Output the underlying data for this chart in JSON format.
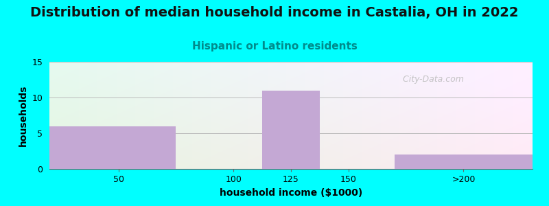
{
  "title": "Distribution of median household income in Castalia, OH in 2022",
  "subtitle": "Hispanic or Latino residents",
  "xlabel": "household income ($1000)",
  "ylabel": "households",
  "categories": [
    "50",
    "100",
    "125",
    "150",
    ">200"
  ],
  "values": [
    6,
    0,
    11,
    0,
    2
  ],
  "bar_color": "#C4A8D4",
  "ylim": [
    0,
    15
  ],
  "yticks": [
    0,
    5,
    10,
    15
  ],
  "background_color": "#00FFFF",
  "plot_bg_color_topleft": "#e8f5e0",
  "plot_bg_color_topright": "#f8f0f8",
  "plot_bg_color_bottomleft": "#d8f0d0",
  "plot_bg_color_bottomright": "#ffffff",
  "title_fontsize": 14,
  "subtitle_fontsize": 11,
  "subtitle_color": "#008B8B",
  "axis_label_fontsize": 10,
  "tick_fontsize": 9,
  "watermark_text": "  City-Data.com",
  "watermark_color": "#bbbbbb",
  "xlim_left": 20,
  "xlim_right": 230,
  "bar_lefts": [
    20,
    87.5,
    112.5,
    137.5,
    170
  ],
  "bar_rights": [
    75,
    112.5,
    137.5,
    162.5,
    230
  ],
  "xtick_positions": [
    50,
    100,
    125,
    150,
    200
  ]
}
